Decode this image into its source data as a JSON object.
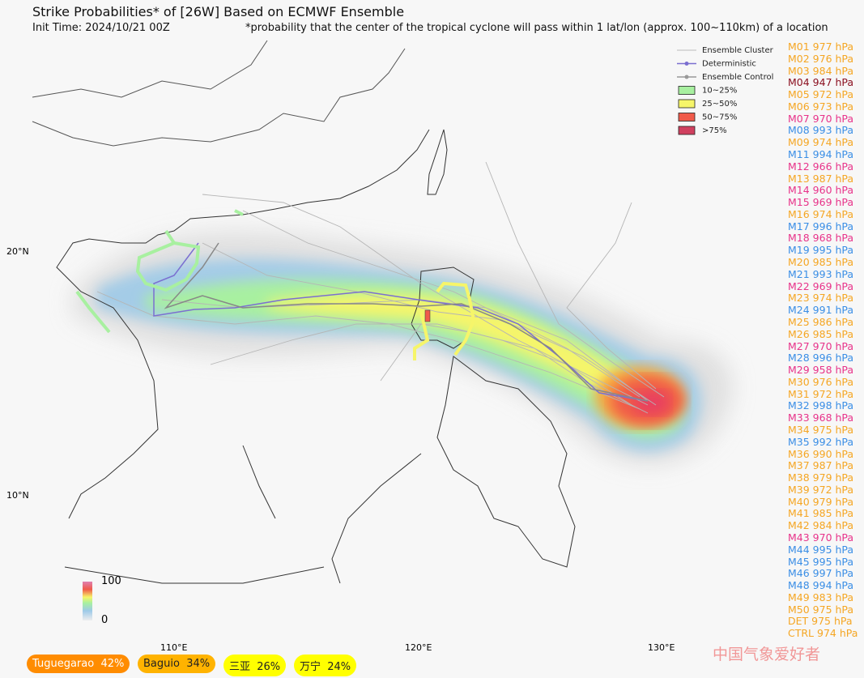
{
  "header": {
    "title": "Strike Probabilities* of [26W] Based on ECMWF Ensemble",
    "init_time": "Init Time: 2024/10/21 00Z",
    "footnote": "*probability that the center of the tropical cyclone will pass within 1 lat/lon (approx. 100~110km) of a location"
  },
  "legend": {
    "items": [
      {
        "label": "Ensemble Cluster",
        "kind": "line",
        "color": "#bbbbbb"
      },
      {
        "label": "Deterministic",
        "kind": "dotline",
        "color": "#7b6fd0"
      },
      {
        "label": "Ensemble Control",
        "kind": "dotline",
        "color": "#999999"
      },
      {
        "label": "10~25%",
        "kind": "box",
        "color": "#a8f0a0"
      },
      {
        "label": "25~50%",
        "kind": "box",
        "color": "#f6f56a"
      },
      {
        "label": "50~75%",
        "kind": "box",
        "color": "#f05a4a"
      },
      {
        "label": ">75%",
        "kind": "box",
        "color": "#d0405f"
      }
    ]
  },
  "axes": {
    "lat_labels": [
      "20°N",
      "10°N"
    ],
    "lon_labels": [
      "110°E",
      "120°E",
      "130°E"
    ]
  },
  "colorbar": {
    "max": "100",
    "min": "0"
  },
  "members": [
    {
      "text": "M01 977 hPa",
      "color": "#f5a623"
    },
    {
      "text": "M02 976 hPa",
      "color": "#f5a623"
    },
    {
      "text": "M03 984 hPa",
      "color": "#f5a623"
    },
    {
      "text": "M04 947 hPa",
      "color": "#8b1020"
    },
    {
      "text": "M05 972 hPa",
      "color": "#f5a623"
    },
    {
      "text": "M06 973 hPa",
      "color": "#f5a623"
    },
    {
      "text": "M07 970 hPa",
      "color": "#e8338a"
    },
    {
      "text": "M08 993 hPa",
      "color": "#3a8ee6"
    },
    {
      "text": "M09 974 hPa",
      "color": "#f5a623"
    },
    {
      "text": "M11 994 hPa",
      "color": "#3a8ee6"
    },
    {
      "text": "M12 966 hPa",
      "color": "#e8338a"
    },
    {
      "text": "M13 987 hPa",
      "color": "#f5a623"
    },
    {
      "text": "M14 960 hPa",
      "color": "#e8338a"
    },
    {
      "text": "M15 969 hPa",
      "color": "#e8338a"
    },
    {
      "text": "M16 974 hPa",
      "color": "#f5a623"
    },
    {
      "text": "M17 996 hPa",
      "color": "#3a8ee6"
    },
    {
      "text": "M18 968 hPa",
      "color": "#e8338a"
    },
    {
      "text": "M19 995 hPa",
      "color": "#3a8ee6"
    },
    {
      "text": "M20 985 hPa",
      "color": "#f5a623"
    },
    {
      "text": "M21 993 hPa",
      "color": "#3a8ee6"
    },
    {
      "text": "M22 969 hPa",
      "color": "#e8338a"
    },
    {
      "text": "M23 974 hPa",
      "color": "#f5a623"
    },
    {
      "text": "M24 991 hPa",
      "color": "#3a8ee6"
    },
    {
      "text": "M25 986 hPa",
      "color": "#f5a623"
    },
    {
      "text": "M26 985 hPa",
      "color": "#f5a623"
    },
    {
      "text": "M27 970 hPa",
      "color": "#e8338a"
    },
    {
      "text": "M28 996 hPa",
      "color": "#3a8ee6"
    },
    {
      "text": "M29 958 hPa",
      "color": "#e8338a"
    },
    {
      "text": "M30 976 hPa",
      "color": "#f5a623"
    },
    {
      "text": "M31 972 hPa",
      "color": "#f5a623"
    },
    {
      "text": "M32 998 hPa",
      "color": "#3a8ee6"
    },
    {
      "text": "M33 968 hPa",
      "color": "#e8338a"
    },
    {
      "text": "M34 975 hPa",
      "color": "#f5a623"
    },
    {
      "text": "M35 992 hPa",
      "color": "#3a8ee6"
    },
    {
      "text": "M36 990 hPa",
      "color": "#f5a623"
    },
    {
      "text": "M37 987 hPa",
      "color": "#f5a623"
    },
    {
      "text": "M38 979 hPa",
      "color": "#f5a623"
    },
    {
      "text": "M39 972 hPa",
      "color": "#f5a623"
    },
    {
      "text": "M40 979 hPa",
      "color": "#f5a623"
    },
    {
      "text": "M41 985 hPa",
      "color": "#f5a623"
    },
    {
      "text": "M42 984 hPa",
      "color": "#f5a623"
    },
    {
      "text": "M43 970 hPa",
      "color": "#e8338a"
    },
    {
      "text": "M44 995 hPa",
      "color": "#3a8ee6"
    },
    {
      "text": "M45 995 hPa",
      "color": "#3a8ee6"
    },
    {
      "text": "M46 997 hPa",
      "color": "#3a8ee6"
    },
    {
      "text": "M48 994 hPa",
      "color": "#3a8ee6"
    },
    {
      "text": "M49 983 hPa",
      "color": "#f5a623"
    },
    {
      "text": "M50 975 hPa",
      "color": "#f5a623"
    },
    {
      "text": "DET 975 hPa",
      "color": "#f5a623"
    },
    {
      "text": "CTRL 974 hPa",
      "color": "#f5a623"
    }
  ],
  "badges": [
    {
      "text": "Tuguegarao  42%",
      "color": "#ff8c00",
      "text_color": "#ffffff"
    },
    {
      "text": "Baguio  34%",
      "color": "#ffb300",
      "text_color": "#222222"
    },
    {
      "text": "三亚  26%",
      "color": "#ffff00",
      "text_color": "#222222"
    },
    {
      "text": "万宁  24%",
      "color": "#ffff00",
      "text_color": "#222222"
    }
  ],
  "watermark": "中国气象爱好者"
}
